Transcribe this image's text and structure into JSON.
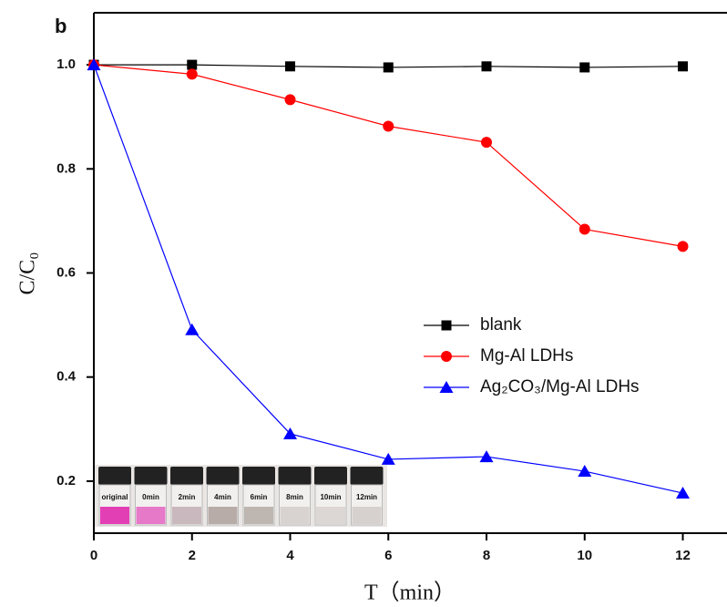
{
  "chart_data": {
    "type": "line",
    "panel_label": "b",
    "x_label": "T（min）",
    "y_label": "C/C₀",
    "x": [
      0,
      2,
      4,
      6,
      8,
      10,
      12
    ],
    "series": [
      {
        "name": "blank",
        "color": "#000000",
        "marker": "square",
        "values": [
          1.0,
          1.0,
          0.997,
          0.995,
          0.997,
          0.995,
          0.997
        ]
      },
      {
        "name": "Mg-Al LDHs",
        "color": "#ff0000",
        "marker": "circle",
        "values": [
          1.0,
          0.982,
          0.933,
          0.882,
          0.851,
          0.684,
          0.651
        ]
      },
      {
        "name": "Ag₂CO₃/Mg-Al LDHs",
        "color": "#0000ff",
        "marker": "triangle",
        "values": [
          1.0,
          0.491,
          0.291,
          0.242,
          0.247,
          0.219,
          0.177
        ]
      }
    ],
    "xlim": [
      0,
      12.9
    ],
    "ylim": [
      0.1,
      1.1
    ],
    "xticks": [
      0,
      2,
      4,
      6,
      8,
      10,
      12
    ],
    "yticks": [
      0.2,
      0.4,
      0.6,
      0.8,
      {
        "value": 1,
        "label": "1.0"
      }
    ],
    "legend": "center right",
    "inset_labels": [
      "original",
      "0min",
      "2min",
      "4min",
      "6min",
      "8min",
      "10min",
      "12min"
    ]
  }
}
